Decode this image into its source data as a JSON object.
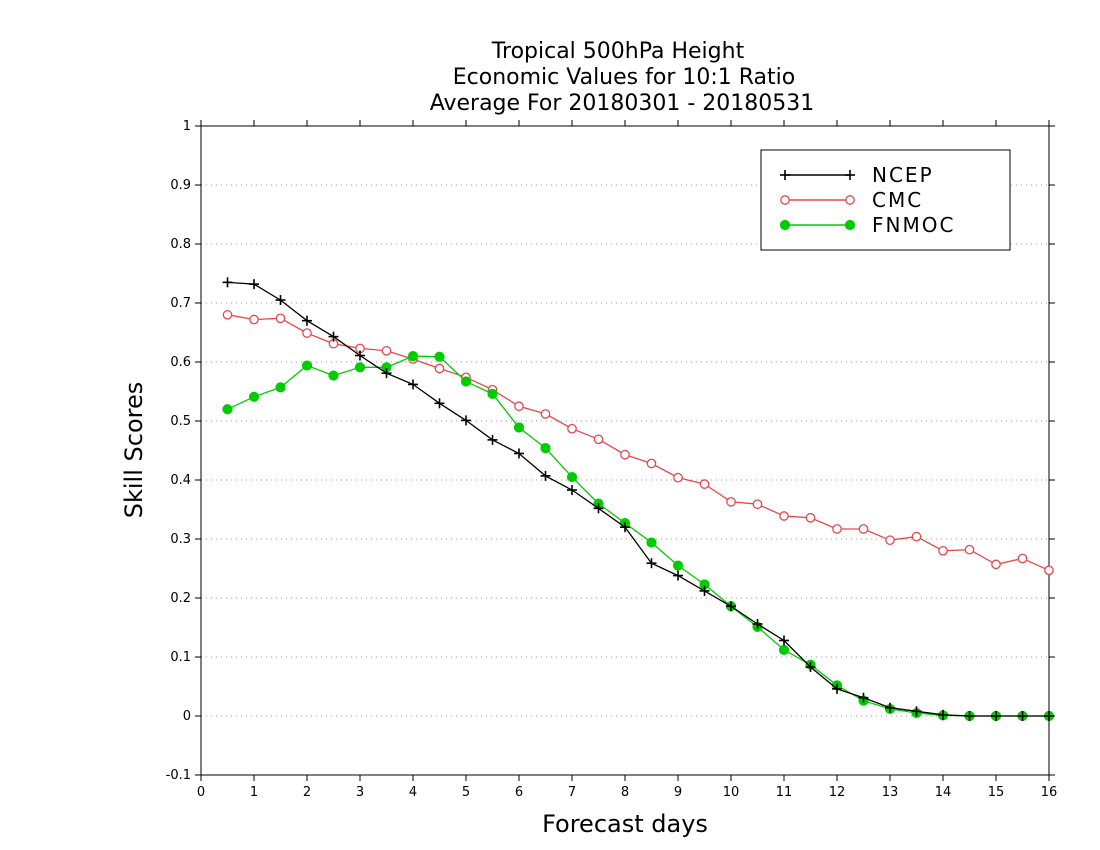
{
  "chart_data": {
    "type": "line",
    "title_lines": [
      "Tropical 500hPa Height",
      "Economic Values for 10:1 Ratio",
      "Average For 20180301 - 20180531"
    ],
    "xlabel": "Forecast days",
    "ylabel": "Skill Scores",
    "xlim": [
      0,
      16
    ],
    "ylim": [
      -0.1,
      1
    ],
    "xticks": [
      0,
      1,
      2,
      3,
      4,
      5,
      6,
      7,
      8,
      9,
      10,
      11,
      12,
      13,
      14,
      15,
      16
    ],
    "yticks": [
      -0.1,
      0,
      0.1,
      0.2,
      0.3,
      0.4,
      0.5,
      0.6,
      0.7,
      0.8,
      0.9,
      1
    ],
    "ytick_labels": [
      "-0.1",
      "0",
      "0.1",
      "0.2",
      "0.3",
      "0.4",
      "0.5",
      "0.6",
      "0.7",
      "0.8",
      "0.9",
      "1"
    ],
    "grid": "horizontal-dotted",
    "legend_position": "top-right",
    "x": [
      0.5,
      1,
      1.5,
      2,
      2.5,
      3,
      3.5,
      4,
      4.5,
      5,
      5.5,
      6,
      6.5,
      7,
      7.5,
      8,
      8.5,
      9,
      9.5,
      10,
      10.5,
      11,
      11.5,
      12,
      12.5,
      13,
      13.5,
      14,
      14.5,
      15,
      15.5,
      16
    ],
    "series": [
      {
        "name": "NCEP",
        "color": "#000000",
        "marker": "plus",
        "values": [
          0.735,
          0.732,
          0.705,
          0.67,
          0.643,
          0.611,
          0.581,
          0.562,
          0.53,
          0.501,
          0.468,
          0.445,
          0.407,
          0.383,
          0.352,
          0.32,
          0.259,
          0.238,
          0.212,
          0.186,
          0.156,
          0.128,
          0.083,
          0.046,
          0.031,
          0.014,
          0.008,
          0.002,
          0.0,
          0.0,
          0.0,
          0.0
        ]
      },
      {
        "name": "CMC",
        "color": "#e8474c",
        "marker": "open-circle",
        "values": [
          0.68,
          0.672,
          0.674,
          0.649,
          0.631,
          0.623,
          0.619,
          0.605,
          0.589,
          0.574,
          0.553,
          0.525,
          0.512,
          0.487,
          0.469,
          0.443,
          0.428,
          0.404,
          0.393,
          0.363,
          0.359,
          0.339,
          0.336,
          0.317,
          0.317,
          0.298,
          0.304,
          0.28,
          0.282,
          0.257,
          0.267,
          0.247
        ]
      },
      {
        "name": "FNMOC",
        "color": "#00cc00",
        "marker": "filled-circle",
        "values": [
          0.52,
          0.541,
          0.557,
          0.594,
          0.577,
          0.591,
          0.591,
          0.61,
          0.609,
          0.567,
          0.546,
          0.489,
          0.454,
          0.405,
          0.36,
          0.327,
          0.294,
          0.255,
          0.223,
          0.186,
          0.151,
          0.112,
          0.087,
          0.052,
          0.026,
          0.012,
          0.005,
          0.001,
          0.0,
          0.0,
          0.0,
          0.0
        ]
      }
    ]
  }
}
